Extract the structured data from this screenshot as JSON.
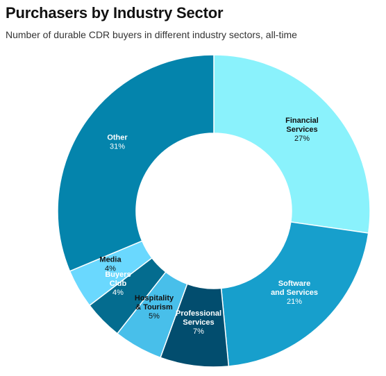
{
  "chart_data": {
    "type": "pie",
    "title": "Purchasers by Industry Sector",
    "subtitle": "Number of durable CDR buyers in different industry sectors, all-time",
    "donut": true,
    "slices": [
      {
        "label_lines": [
          "Financial",
          "Services"
        ],
        "value": 27,
        "value_label": "27%",
        "color": "#8af2fc",
        "label_color": "#111111"
      },
      {
        "label_lines": [
          "Software",
          "and Services"
        ],
        "value": 21,
        "value_label": "21%",
        "color": "#179fcc",
        "label_color": "#ffffff"
      },
      {
        "label_lines": [
          "Professional",
          "Services"
        ],
        "value": 7,
        "value_label": "7%",
        "color": "#024d6e",
        "label_color": "#ffffff"
      },
      {
        "label_lines": [
          "Hospitality",
          "& Tourism"
        ],
        "value": 5,
        "value_label": "5%",
        "color": "#48bfea",
        "label_color": "#111111"
      },
      {
        "label_lines": [
          "Buyers",
          "Club"
        ],
        "value": 4,
        "value_label": "4%",
        "color": "#046c8f",
        "label_color": "#ffffff"
      },
      {
        "label_lines": [
          "Media"
        ],
        "value": 4,
        "value_label": "4%",
        "color": "#6ad8fe",
        "label_color": "#111111"
      },
      {
        "label_lines": [
          "Other"
        ],
        "value": 31,
        "value_label": "31%",
        "color": "#0484ac",
        "label_color": "#ffffff"
      }
    ]
  }
}
